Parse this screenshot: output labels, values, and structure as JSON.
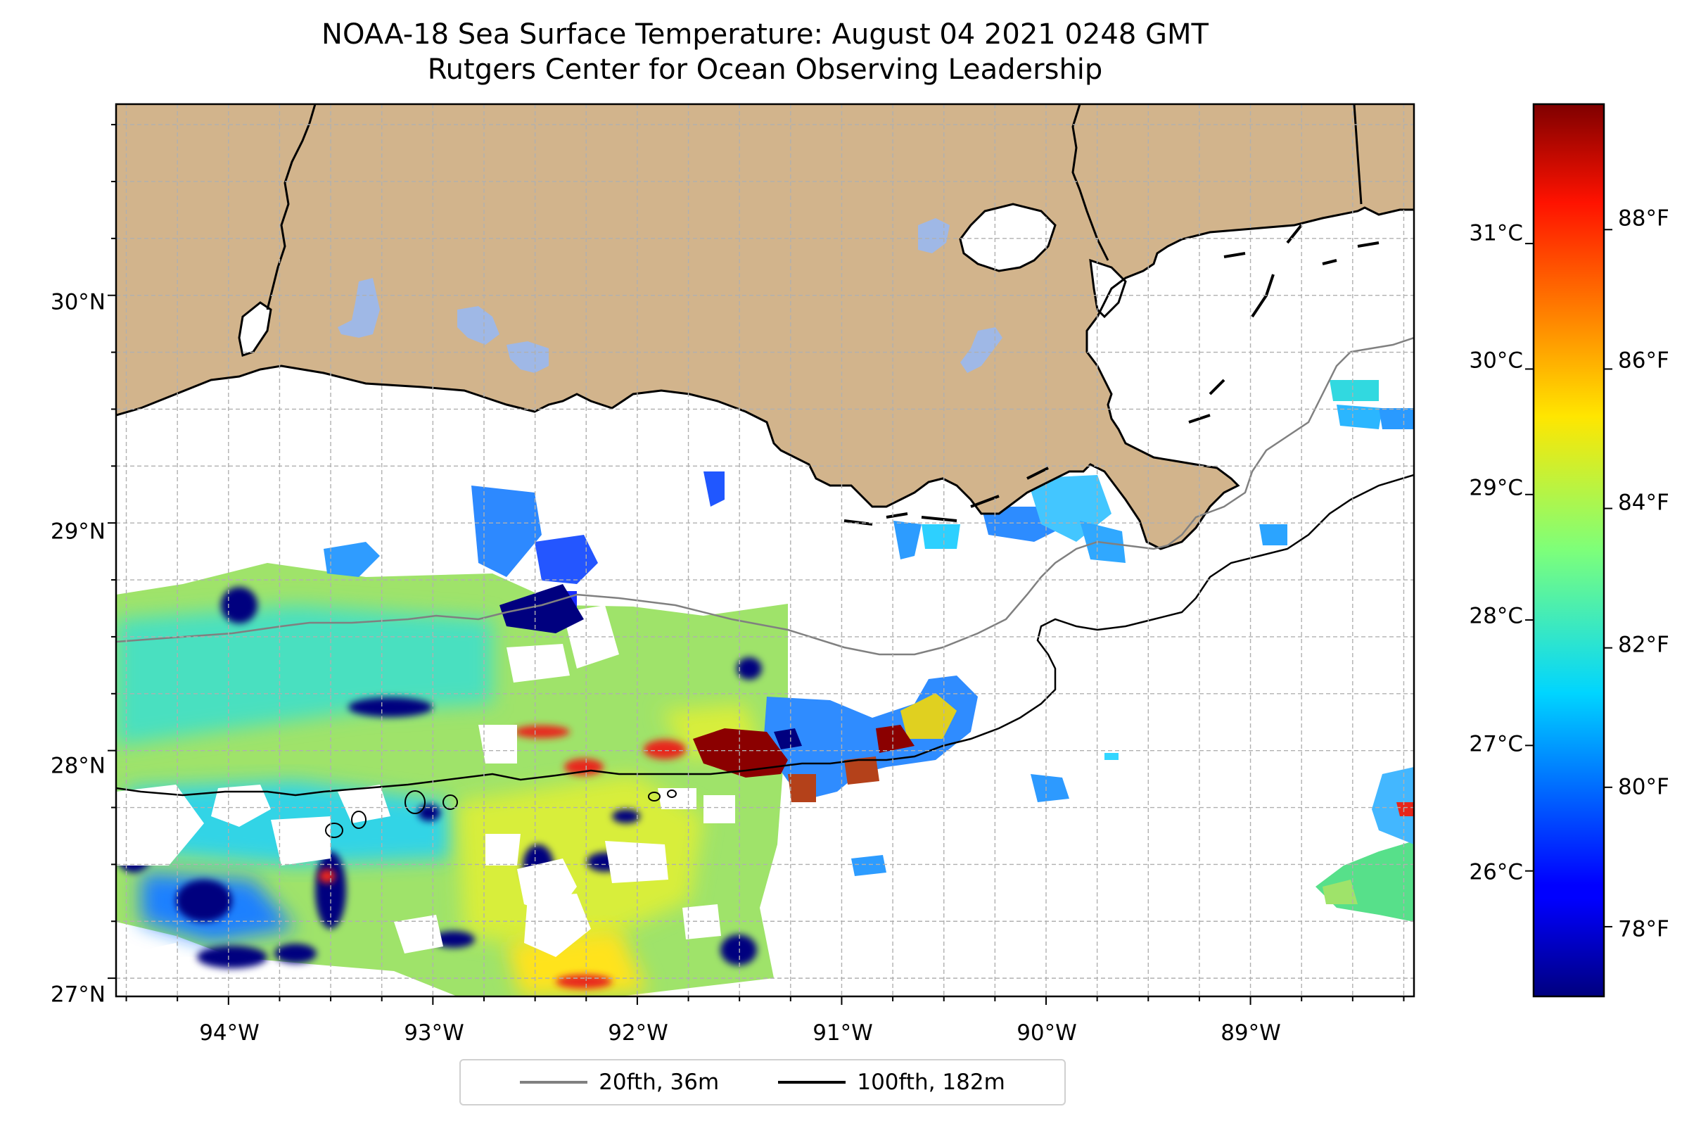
{
  "title": {
    "line1": "NOAA-18 Sea Surface Temperature: August 04 2021 0248 GMT",
    "line2": "Rutgers Center for Ocean Observing Leadership"
  },
  "map": {
    "lon_range": [
      -94.55,
      -88.2
    ],
    "lat_range": [
      26.92,
      30.84
    ],
    "lon_ticks": [
      "94°W",
      "93°W",
      "92°W",
      "91°W",
      "90°W",
      "89°W"
    ],
    "lat_ticks": [
      "27°N",
      "28°N",
      "29°N",
      "30°N"
    ],
    "land_color": "#d2b48c",
    "lake_color": "#9fb8e6",
    "grid": "dashed, every 0.25 degree"
  },
  "colorbar": {
    "colormap": "jet",
    "celsius_ticks": [
      "26°C",
      "27°C",
      "28°C",
      "29°C",
      "30°C",
      "31°C"
    ],
    "fahrenheit_ticks": [
      "78°F",
      "80°F",
      "82°F",
      "84°F",
      "86°F",
      "88°F"
    ],
    "range_f": [
      77.0,
      89.8
    ]
  },
  "legend": {
    "items": [
      {
        "label": "20fth, 36m",
        "color": "#808080"
      },
      {
        "label": "100fth, 182m",
        "color": "#000000"
      }
    ]
  }
}
